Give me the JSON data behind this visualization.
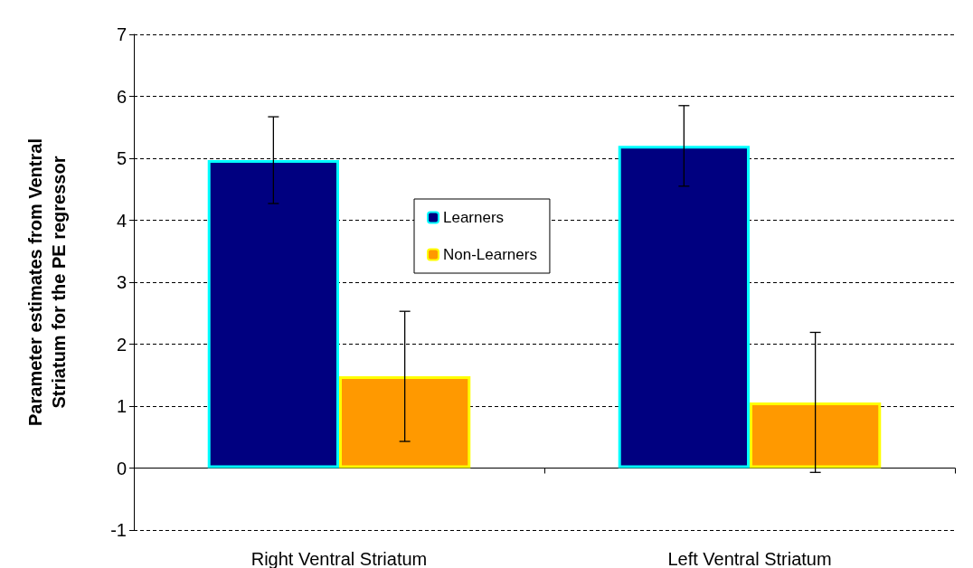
{
  "chart_data": {
    "type": "bar",
    "ylabel": "Parameter estimates from Ventral Striatum for the PE regressor",
    "categories": [
      "Right Ventral Striatum",
      "Left Ventral Striatum"
    ],
    "series": [
      {
        "name": "Learners",
        "color": "#000080",
        "values": [
          4.97,
          5.2
        ],
        "errors": [
          0.7,
          0.65
        ]
      },
      {
        "name": "Non-Learners",
        "color": "#ff9900",
        "values": [
          1.48,
          1.06
        ],
        "errors": [
          1.05,
          1.13
        ]
      }
    ],
    "ylim": [
      -1,
      7
    ],
    "yticks": [
      -1,
      0,
      1,
      2,
      3,
      4,
      5,
      6,
      7
    ],
    "grid": "y",
    "legend": "center"
  }
}
